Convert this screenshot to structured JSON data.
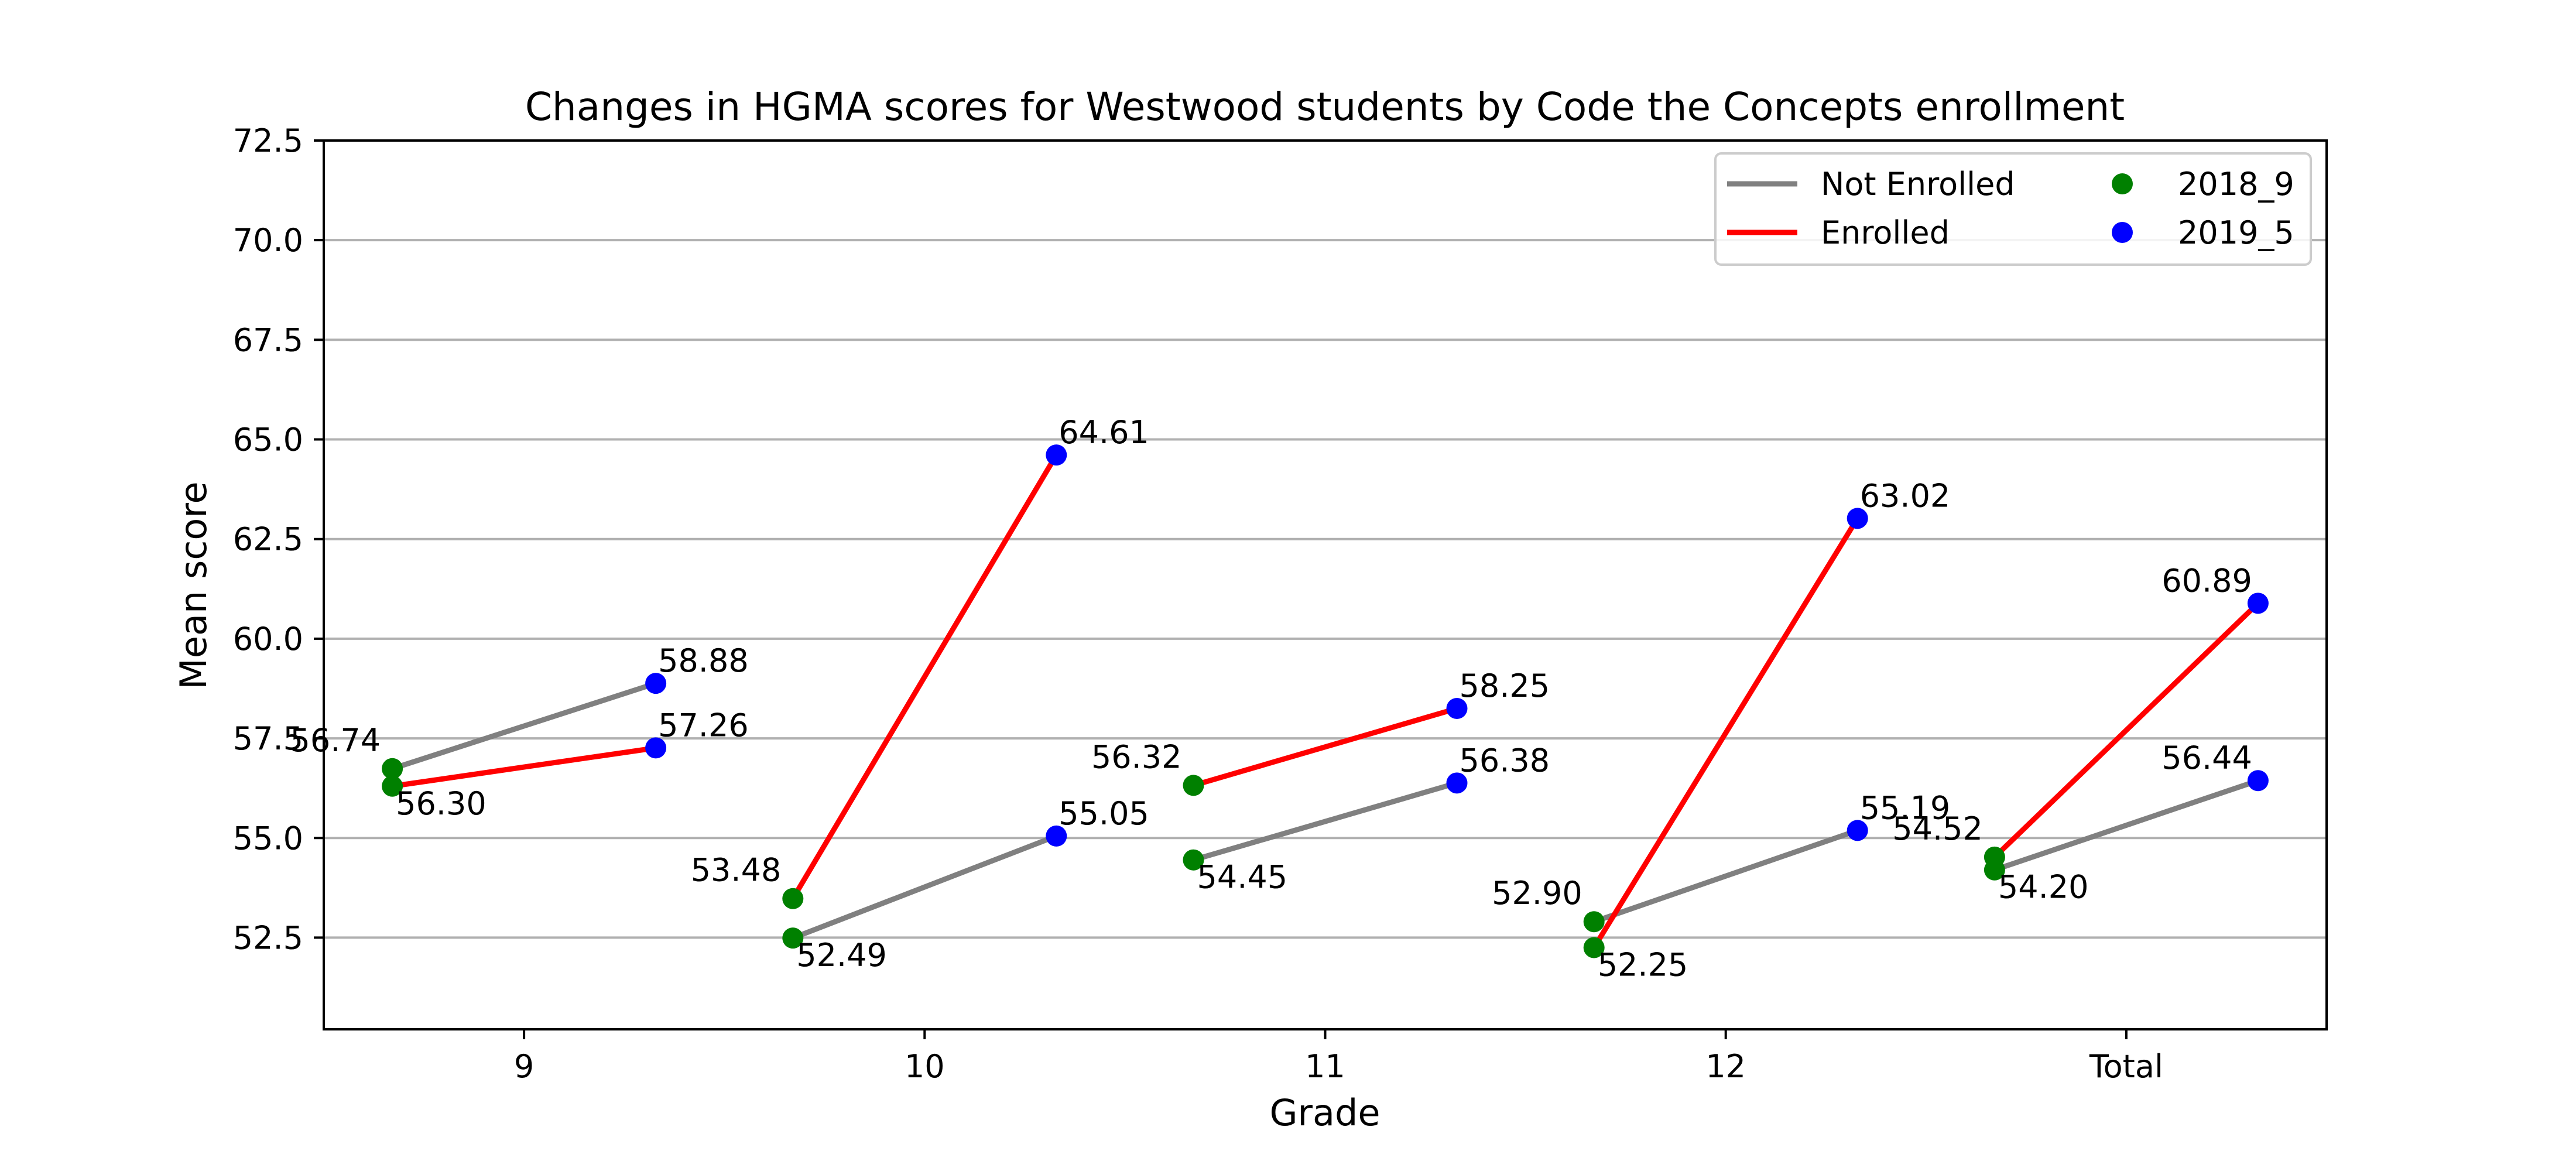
{
  "chart_data": {
    "type": "line",
    "title": "Changes in HGMA scores for Westwood students by Code the Concepts enrollment",
    "xlabel": "Grade",
    "ylabel": "Mean score",
    "categories": [
      "9",
      "10",
      "11",
      "12",
      "Total"
    ],
    "ylim": [
      50.2,
      72.5
    ],
    "yticks": [
      "52.5",
      "55.0",
      "57.5",
      "60.0",
      "62.5",
      "65.0",
      "67.5",
      "70.0",
      "72.5"
    ],
    "grid": "horizontal",
    "legend_placement": "top-right",
    "time_points": [
      {
        "name": "2018_9",
        "color": "#008000"
      },
      {
        "name": "2019_5",
        "color": "#0000ff"
      }
    ],
    "series": [
      {
        "name": "Not Enrolled",
        "color": "#808080",
        "start_values": [
          56.74,
          52.49,
          54.45,
          52.9,
          54.2
        ],
        "end_values": [
          58.88,
          55.05,
          56.38,
          55.19,
          56.44
        ],
        "start_labels": [
          "56.74",
          "52.49",
          "54.45",
          "52.90",
          "54.20"
        ],
        "end_labels": [
          "58.88",
          "55.05",
          "56.38",
          "55.19",
          "56.44"
        ]
      },
      {
        "name": "Enrolled",
        "color": "#ff0000",
        "start_values": [
          56.3,
          53.48,
          56.32,
          52.25,
          54.52
        ],
        "end_values": [
          57.26,
          64.61,
          58.25,
          63.02,
          60.89
        ],
        "start_labels": [
          "56.30",
          "53.48",
          "56.32",
          "52.25",
          "54.52"
        ],
        "end_labels": [
          "57.26",
          "64.61",
          "58.25",
          "63.02",
          "60.89"
        ]
      }
    ]
  }
}
